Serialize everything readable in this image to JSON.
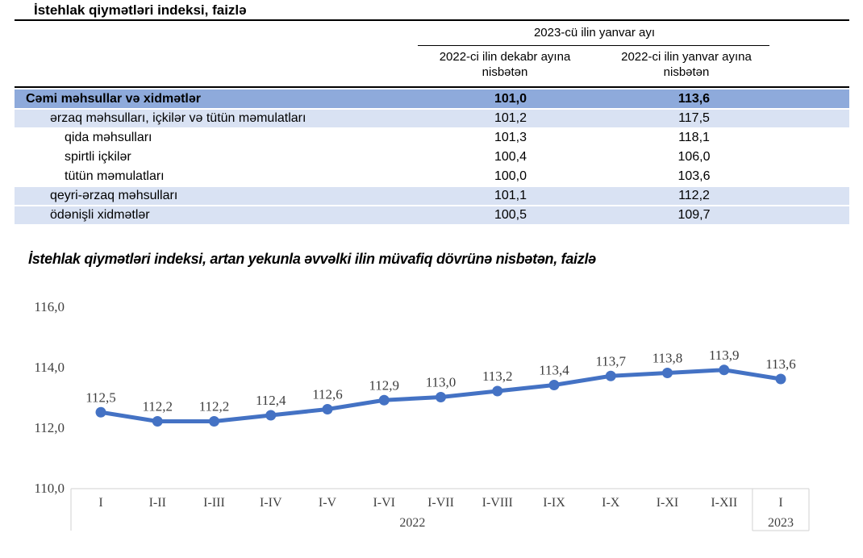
{
  "title": "İstehlak qiymətləri indeksi, faizlə",
  "table": {
    "col_group_header": "2023-cü ilin yanvar ayı",
    "col1_header": "2022-ci ilin dekabr ayına nisbətən",
    "col2_header": "2022-ci ilin yanvar ayına nisbətən",
    "rows": [
      {
        "label": "Cəmi məhsullar və xidmətlər",
        "v1": "101,0",
        "v2": "113,6"
      },
      {
        "label": "ərzaq məhsulları, içkilər və tütün məmulatları",
        "v1": "101,2",
        "v2": "117,5"
      },
      {
        "label": "qida məhsulları",
        "v1": "101,3",
        "v2": "118,1"
      },
      {
        "label": "spirtli içkilər",
        "v1": "100,4",
        "v2": "106,0"
      },
      {
        "label": "tütün məmulatları",
        "v1": "100,0",
        "v2": "103,6"
      },
      {
        "label": "qeyri-ərzaq məhsulları",
        "v1": "101,1",
        "v2": "112,2"
      },
      {
        "label": "ödənişli xidmətlər",
        "v1": "100,5",
        "v2": "109,7"
      }
    ]
  },
  "chart_title": "İstehlak qiymətləri indeksi, artan yekunla əvvəlki ilin müvafiq dövrünə nisbətən, faizlə",
  "chart_data": {
    "type": "line",
    "categories": [
      "I",
      "I-II",
      "I-III",
      "I-IV",
      "I-V",
      "I-VI",
      "I-VII",
      "I-VIII",
      "I-IX",
      "I-X",
      "I-XI",
      "I-XII",
      "I"
    ],
    "values": [
      112.5,
      112.2,
      112.2,
      112.4,
      112.6,
      112.9,
      113.0,
      113.2,
      113.4,
      113.7,
      113.8,
      113.9,
      113.6
    ],
    "point_labels": [
      "112,5",
      "112,2",
      "112,2",
      "112,4",
      "112,6",
      "112,9",
      "113,0",
      "113,2",
      "113,4",
      "113,7",
      "113,8",
      "113,9",
      "113,6"
    ],
    "year_groups": [
      {
        "label": "2022",
        "span": 12
      },
      {
        "label": "2023",
        "span": 1
      }
    ],
    "yticks": [
      "110,0",
      "112,0",
      "114,0",
      "116,0"
    ],
    "ylim": [
      110,
      116
    ],
    "grid": "off",
    "legend": "none",
    "line_color": "#4472C4",
    "axis_band_color": "#D9D9D9"
  },
  "colors": {
    "header_row_bg": "#8EAADB",
    "alt_row_bg": "#D9E2F3",
    "line": "#4472C4",
    "chart_text": "#404040"
  }
}
